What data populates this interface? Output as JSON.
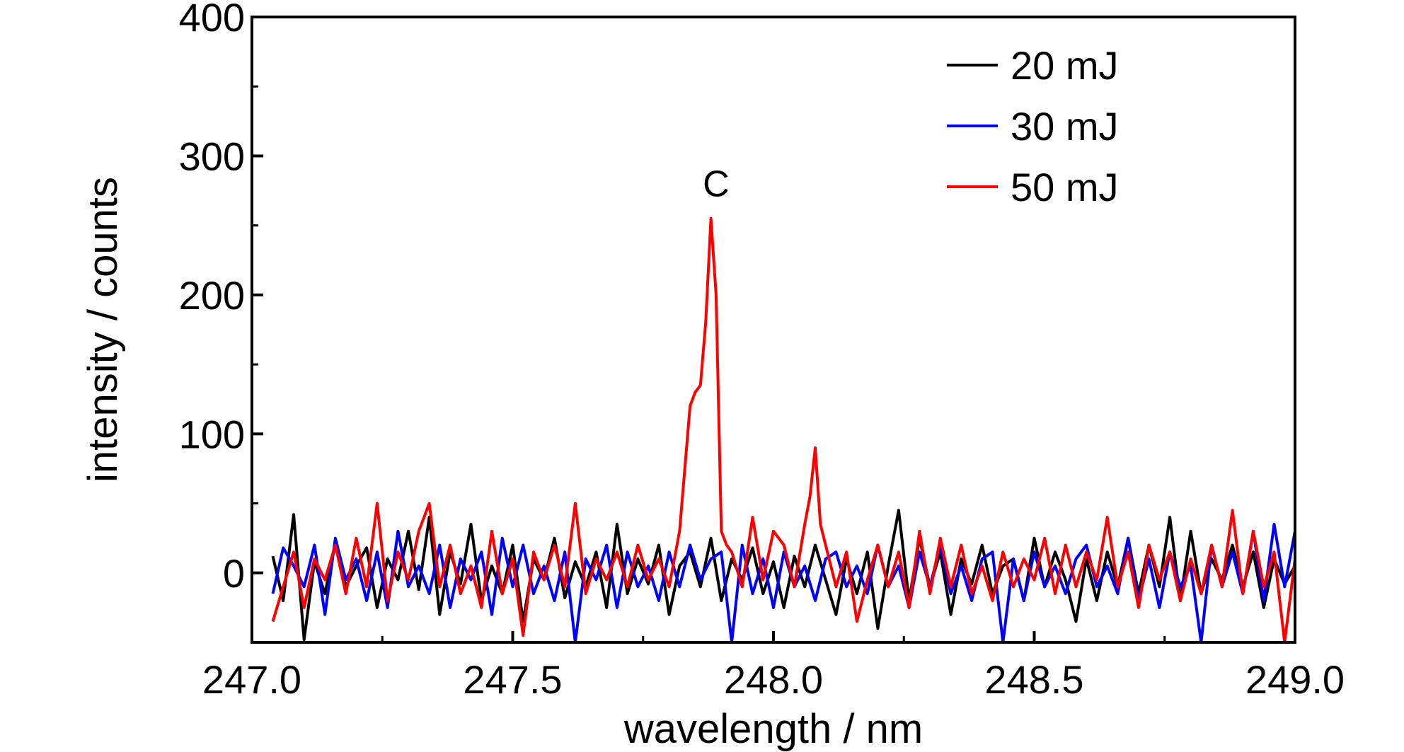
{
  "chart_data": {
    "type": "line",
    "xlabel": "wavelength / nm",
    "ylabel": "intensity / counts",
    "xlim": [
      247.0,
      249.0
    ],
    "ylim": [
      -50,
      400
    ],
    "x_ticks": [
      "247.0",
      "247.5",
      "248.0",
      "248.5",
      "249.0"
    ],
    "y_ticks": [
      "0",
      "100",
      "200",
      "300",
      "400"
    ],
    "grid": false,
    "legend_position": "top-right",
    "annotations": [
      {
        "text": "C",
        "x": 247.89,
        "y": 280
      }
    ],
    "series": [
      {
        "name": "20 mJ",
        "color": "#000000",
        "x": [
          247.04,
          247.06,
          247.08,
          247.1,
          247.12,
          247.14,
          247.16,
          247.18,
          247.2,
          247.22,
          247.24,
          247.26,
          247.28,
          247.3,
          247.32,
          247.34,
          247.36,
          247.38,
          247.4,
          247.42,
          247.44,
          247.46,
          247.48,
          247.5,
          247.52,
          247.54,
          247.56,
          247.58,
          247.6,
          247.62,
          247.64,
          247.66,
          247.68,
          247.7,
          247.72,
          247.74,
          247.76,
          247.78,
          247.8,
          247.82,
          247.84,
          247.86,
          247.88,
          247.9,
          247.92,
          247.94,
          247.96,
          247.98,
          248.0,
          248.02,
          248.04,
          248.06,
          248.08,
          248.1,
          248.12,
          248.14,
          248.16,
          248.18,
          248.2,
          248.22,
          248.24,
          248.26,
          248.28,
          248.3,
          248.32,
          248.34,
          248.36,
          248.38,
          248.4,
          248.42,
          248.44,
          248.46,
          248.48,
          248.5,
          248.52,
          248.54,
          248.56,
          248.58,
          248.6,
          248.62,
          248.64,
          248.66,
          248.68,
          248.7,
          248.72,
          248.74,
          248.76,
          248.78,
          248.8,
          248.82,
          248.84,
          248.86,
          248.88,
          248.9,
          248.92,
          248.94,
          248.96,
          248.98,
          249.0
        ],
        "values": [
          12,
          -20,
          42,
          -48,
          8,
          -15,
          22,
          -10,
          5,
          18,
          -25,
          10,
          -5,
          30,
          -12,
          40,
          -30,
          15,
          -8,
          35,
          -20,
          5,
          -15,
          20,
          -35,
          10,
          -5,
          25,
          -18,
          8,
          -10,
          15,
          -25,
          35,
          -15,
          10,
          -8,
          20,
          -30,
          5,
          15,
          -10,
          25,
          -20,
          10,
          -5,
          18,
          -15,
          8,
          -25,
          12,
          -10,
          20,
          -5,
          -30,
          10,
          -15,
          15,
          -40,
          5,
          45,
          -20,
          25,
          -10,
          15,
          -30,
          10,
          -8,
          20,
          -15,
          5,
          10,
          -20,
          25,
          -10,
          15,
          -5,
          -35,
          10,
          -20,
          15,
          -10,
          25,
          -15,
          20,
          -10,
          40,
          -20,
          30,
          -15,
          10,
          -5,
          20,
          -10,
          15,
          -25,
          10,
          -8,
          5
        ]
      },
      {
        "name": "30 mJ",
        "color": "#0000ff",
        "x": [
          247.04,
          247.06,
          247.08,
          247.1,
          247.12,
          247.14,
          247.16,
          247.18,
          247.2,
          247.22,
          247.24,
          247.26,
          247.28,
          247.3,
          247.32,
          247.34,
          247.36,
          247.38,
          247.4,
          247.42,
          247.44,
          247.46,
          247.48,
          247.5,
          247.52,
          247.54,
          247.56,
          247.58,
          247.6,
          247.62,
          247.64,
          247.66,
          247.68,
          247.7,
          247.72,
          247.74,
          247.76,
          247.78,
          247.8,
          247.82,
          247.84,
          247.86,
          247.88,
          247.9,
          247.92,
          247.94,
          247.96,
          247.98,
          248.0,
          248.02,
          248.04,
          248.06,
          248.08,
          248.1,
          248.12,
          248.14,
          248.16,
          248.18,
          248.2,
          248.22,
          248.24,
          248.26,
          248.28,
          248.3,
          248.32,
          248.34,
          248.36,
          248.38,
          248.4,
          248.42,
          248.44,
          248.46,
          248.48,
          248.5,
          248.52,
          248.54,
          248.56,
          248.58,
          248.6,
          248.62,
          248.64,
          248.66,
          248.68,
          248.7,
          248.72,
          248.74,
          248.76,
          248.78,
          248.8,
          248.82,
          248.84,
          248.86,
          248.88,
          248.9,
          248.92,
          248.94,
          248.96,
          248.98,
          249.0
        ],
        "values": [
          -15,
          18,
          5,
          -10,
          20,
          -30,
          25,
          -5,
          10,
          -20,
          15,
          -25,
          30,
          -10,
          5,
          -15,
          20,
          -25,
          10,
          -5,
          15,
          -30,
          25,
          -10,
          20,
          -15,
          5,
          -20,
          15,
          -50,
          10,
          -5,
          20,
          -25,
          15,
          -10,
          5,
          -20,
          15,
          -10,
          20,
          -5,
          10,
          15,
          -50,
          20,
          -15,
          10,
          -25,
          15,
          -10,
          5,
          -20,
          10,
          15,
          -10,
          5,
          -15,
          20,
          -10,
          5,
          -25,
          15,
          -10,
          20,
          -15,
          5,
          -20,
          10,
          15,
          -50,
          10,
          -20,
          15,
          -10,
          5,
          -15,
          10,
          20,
          -10,
          5,
          -15,
          25,
          -20,
          10,
          -25,
          15,
          -10,
          5,
          -50,
          20,
          -10,
          15,
          -15,
          30,
          -20,
          35,
          -10,
          30
        ]
      },
      {
        "name": "50 mJ",
        "color": "#ff0000",
        "x": [
          247.04,
          247.06,
          247.08,
          247.1,
          247.12,
          247.14,
          247.16,
          247.18,
          247.2,
          247.22,
          247.24,
          247.26,
          247.28,
          247.3,
          247.32,
          247.34,
          247.36,
          247.38,
          247.4,
          247.42,
          247.44,
          247.46,
          247.48,
          247.5,
          247.52,
          247.54,
          247.56,
          247.58,
          247.6,
          247.62,
          247.64,
          247.66,
          247.68,
          247.7,
          247.72,
          247.74,
          247.76,
          247.78,
          247.8,
          247.82,
          247.84,
          247.85,
          247.86,
          247.87,
          247.88,
          247.89,
          247.9,
          247.91,
          247.92,
          247.94,
          247.96,
          247.98,
          248.0,
          248.02,
          248.04,
          248.06,
          248.07,
          248.08,
          248.09,
          248.1,
          248.12,
          248.14,
          248.16,
          248.18,
          248.2,
          248.22,
          248.24,
          248.26,
          248.28,
          248.3,
          248.32,
          248.34,
          248.36,
          248.38,
          248.4,
          248.42,
          248.44,
          248.46,
          248.48,
          248.5,
          248.52,
          248.54,
          248.56,
          248.58,
          248.6,
          248.62,
          248.64,
          248.66,
          248.68,
          248.7,
          248.72,
          248.74,
          248.76,
          248.78,
          248.8,
          248.82,
          248.84,
          248.86,
          248.88,
          248.9,
          248.92,
          248.94,
          248.96,
          248.98,
          249.0
        ],
        "values": [
          -35,
          -10,
          15,
          -25,
          10,
          -5,
          20,
          -15,
          25,
          -10,
          50,
          -20,
          15,
          -5,
          30,
          50,
          -10,
          20,
          -15,
          5,
          -25,
          30,
          -15,
          10,
          -45,
          15,
          -5,
          20,
          -10,
          50,
          -15,
          10,
          -5,
          15,
          -10,
          20,
          -5,
          10,
          -10,
          30,
          120,
          130,
          135,
          180,
          255,
          200,
          30,
          20,
          15,
          -10,
          40,
          -5,
          30,
          20,
          -10,
          35,
          55,
          90,
          35,
          20,
          -10,
          15,
          -35,
          -5,
          20,
          -10,
          15,
          -25,
          30,
          -15,
          25,
          -10,
          20,
          -15,
          5,
          -20,
          15,
          -10,
          10,
          -5,
          25,
          -15,
          20,
          -10,
          15,
          -5,
          40,
          -10,
          15,
          -25,
          20,
          -5,
          15,
          -20,
          10,
          -15,
          20,
          -10,
          45,
          -15,
          30,
          -10,
          15,
          -50,
          10
        ]
      }
    ]
  }
}
